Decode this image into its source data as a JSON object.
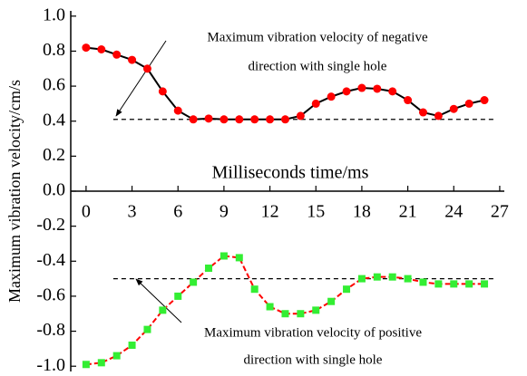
{
  "chart_data": {
    "type": "line",
    "x_label": "Milliseconds time/ms",
    "y_label": "Maximum vibration velocity/cm/s",
    "x": [
      0,
      1,
      2,
      3,
      4,
      5,
      6,
      7,
      8,
      9,
      10,
      11,
      12,
      13,
      14,
      15,
      16,
      17,
      18,
      19,
      20,
      21,
      22,
      23,
      24,
      25,
      26
    ],
    "series": [
      {
        "color": "#ff0000",
        "marker": "circle",
        "line_color": "#000000",
        "line_dash": false,
        "values": [
          0.82,
          0.81,
          0.78,
          0.75,
          0.7,
          0.57,
          0.46,
          0.41,
          0.415,
          0.41,
          0.41,
          0.41,
          0.41,
          0.41,
          0.43,
          0.5,
          0.54,
          0.57,
          0.59,
          0.585,
          0.57,
          0.52,
          0.45,
          0.43,
          0.47,
          0.5,
          0.52
        ]
      },
      {
        "color": "#33ee33",
        "marker": "square",
        "line_color": "#ff0000",
        "line_dash": true,
        "values": [
          -0.99,
          -0.98,
          -0.94,
          -0.88,
          -0.79,
          -0.68,
          -0.6,
          -0.52,
          -0.44,
          -0.37,
          -0.38,
          -0.56,
          -0.66,
          -0.7,
          -0.7,
          -0.68,
          -0.63,
          -0.56,
          -0.5,
          -0.49,
          -0.49,
          -0.5,
          -0.52,
          -0.53,
          -0.53,
          -0.53,
          -0.53
        ]
      }
    ],
    "reference_lines": [
      {
        "value": 0.41
      },
      {
        "value": -0.5
      }
    ],
    "annotations": [
      {
        "lines": [
          "Maximum vibration velocity of negative",
          "direction with single hole"
        ]
      },
      {
        "lines": [
          "Maximum vibration velocity of positive",
          "direction with single hole"
        ]
      }
    ],
    "xlim": [
      -1,
      27.3
    ],
    "xticks": [
      0,
      3,
      6,
      9,
      12,
      15,
      18,
      21,
      24,
      27
    ],
    "ylim": [
      -1.03,
      1.03
    ],
    "yticks": [
      {
        "value": 1,
        "label": "1.0"
      },
      0.8,
      0.6,
      0.4,
      0.2,
      {
        "value": 0,
        "label": "0.0"
      },
      -0.2,
      -0.4,
      -0.6,
      -0.8,
      {
        "value": -1,
        "label": "-1.0"
      }
    ]
  }
}
